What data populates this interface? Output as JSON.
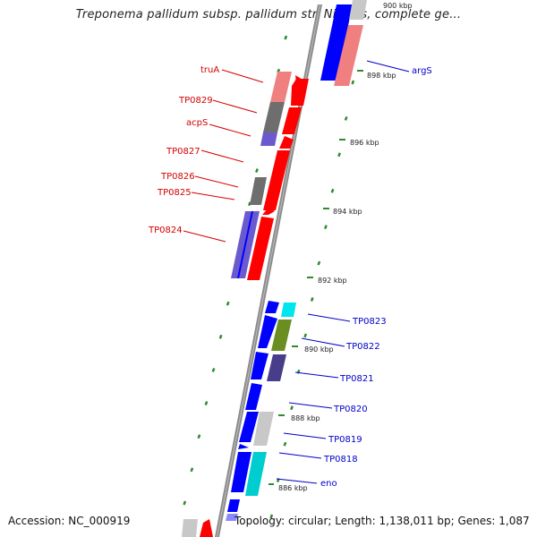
{
  "title": "Treponema pallidum subsp. pallidum str. Nichols, complete ge...",
  "footer": {
    "accession": "Accession: NC_000919",
    "summary": "Topology: circular; Length: 1,138,011 bp; Genes: 1,087"
  },
  "scale_ticks": [
    {
      "label": "900 kbp"
    },
    {
      "label": "898 kbp"
    },
    {
      "label": "896 kbp"
    },
    {
      "label": "894 kbp"
    },
    {
      "label": "892 kbp"
    },
    {
      "label": "890 kbp"
    },
    {
      "label": "888 kbp"
    },
    {
      "label": "886 kbp"
    }
  ],
  "gene_labels": {
    "reverse_strand": [
      "truA",
      "TP0829",
      "acpS",
      "TP0827",
      "TP0826",
      "TP0825",
      "TP0824"
    ],
    "forward_strand": [
      "argS",
      "TP0823",
      "TP0822",
      "TP0821",
      "TP0820",
      "TP0819",
      "TP0818",
      "eno"
    ]
  },
  "colors": {
    "reverse_label": "#d40000",
    "forward_label": "#0000c8",
    "backbone": "#8c8c8c",
    "red": "#ff0000",
    "pink": "#f08080",
    "blue": "#0000ff",
    "slate": "#6a5acd",
    "gray": "#6e6e6e",
    "light_gray": "#c8c8c8",
    "cyan": "#00e5ee",
    "olive": "#6b8e23",
    "navy_slate": "#483d8b",
    "dots": "#2e8b2e"
  }
}
